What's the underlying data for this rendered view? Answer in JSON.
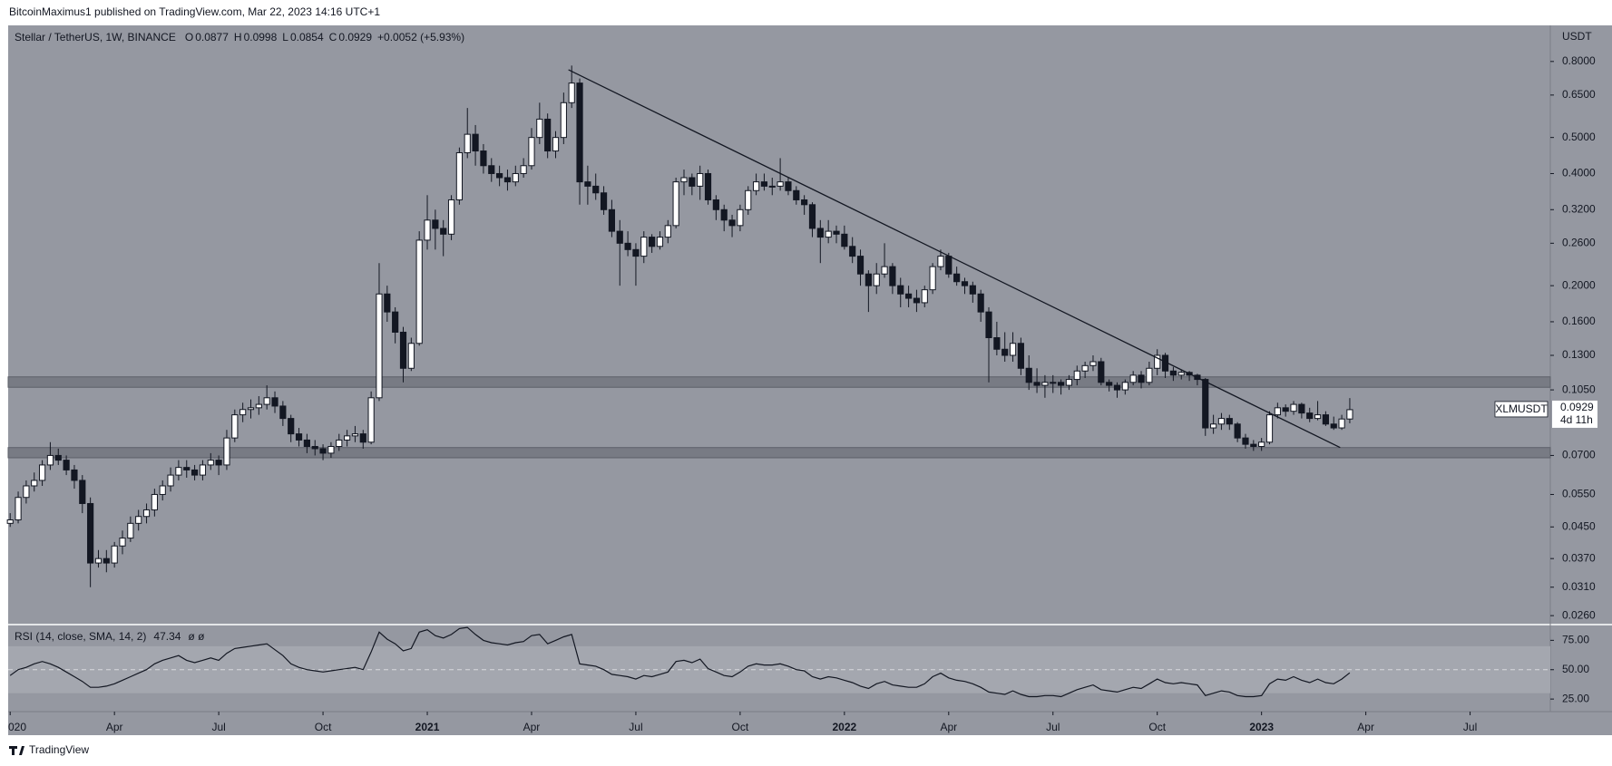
{
  "header": "BitcoinMaximus1 published on TradingView.com, Mar 22, 2023 14:16 UTC+1",
  "footer": "TradingView",
  "chart_data": {
    "type": "candlestick",
    "title": "Stellar / TetherUS, 1W, BINANCE",
    "ohlc_labels": [
      "O",
      "H",
      "L",
      "C"
    ],
    "change": "+0.0052 (+5.93%)",
    "symbol": "XLMUSDT",
    "countdown": "4d 11h",
    "y_unit": "USDT",
    "up_color": "#ffffff",
    "down_color": "#131722",
    "log": true,
    "ylim": [
      0.0246,
      1.0
    ],
    "yticks": [
      {
        "value": 0.8,
        "label": "0.8000"
      },
      {
        "value": 0.65,
        "label": "0.6500"
      },
      {
        "value": 0.5,
        "label": "0.5000"
      },
      {
        "value": 0.4,
        "label": "0.4000"
      },
      {
        "value": 0.32,
        "label": "0.3200"
      },
      {
        "value": 0.26,
        "label": "0.2600"
      },
      {
        "value": 0.2,
        "label": "0.2000"
      },
      {
        "value": 0.16,
        "label": "0.1600"
      },
      {
        "value": 0.13,
        "label": "0.1300"
      },
      {
        "value": 0.105,
        "label": "0.1050"
      },
      {
        "value": 0.07,
        "label": "0.0700"
      },
      {
        "value": 0.055,
        "label": "0.0550"
      },
      {
        "value": 0.045,
        "label": "0.0450"
      },
      {
        "value": 0.037,
        "label": "0.0370"
      },
      {
        "value": 0.031,
        "label": "0.0310"
      },
      {
        "value": 0.026,
        "label": "0.0260"
      }
    ],
    "xlim": [
      -0.25,
      192
    ],
    "xticks": [
      {
        "value": 0,
        "label": "020"
      },
      {
        "value": 13,
        "label": "Apr"
      },
      {
        "value": 26,
        "label": "Jul"
      },
      {
        "value": 39,
        "label": "Oct"
      },
      {
        "value": 52,
        "label": "2021"
      },
      {
        "value": 65,
        "label": "Apr"
      },
      {
        "value": 78,
        "label": "Jul"
      },
      {
        "value": 91,
        "label": "Oct"
      },
      {
        "value": 104,
        "label": "2022"
      },
      {
        "value": 117,
        "label": "Apr"
      },
      {
        "value": 130,
        "label": "Jul"
      },
      {
        "value": 143,
        "label": "Oct"
      },
      {
        "value": 156,
        "label": "2023"
      },
      {
        "value": 169,
        "label": "Apr"
      },
      {
        "value": 182,
        "label": "Jul"
      }
    ],
    "zones": [
      [
        0.1067,
        0.1138
      ],
      [
        0.069,
        0.0735
      ]
    ],
    "trendline": {
      "x": [
        69.6,
        165.8
      ],
      "y": [
        0.76,
        0.0735
      ]
    },
    "candles": [
      [
        0.046,
        0.049,
        0.045,
        0.047
      ],
      [
        0.047,
        0.056,
        0.046,
        0.054
      ],
      [
        0.054,
        0.06,
        0.052,
        0.058
      ],
      [
        0.058,
        0.063,
        0.056,
        0.06
      ],
      [
        0.06,
        0.068,
        0.058,
        0.066
      ],
      [
        0.066,
        0.076,
        0.064,
        0.07
      ],
      [
        0.07,
        0.073,
        0.066,
        0.068
      ],
      [
        0.068,
        0.07,
        0.062,
        0.064
      ],
      [
        0.064,
        0.066,
        0.057,
        0.06
      ],
      [
        0.06,
        0.062,
        0.049,
        0.052
      ],
      [
        0.052,
        0.054,
        0.031,
        0.036
      ],
      [
        0.036,
        0.039,
        0.035,
        0.037
      ],
      [
        0.037,
        0.039,
        0.034,
        0.036
      ],
      [
        0.036,
        0.041,
        0.035,
        0.04
      ],
      [
        0.04,
        0.044,
        0.038,
        0.042
      ],
      [
        0.042,
        0.048,
        0.041,
        0.046
      ],
      [
        0.046,
        0.05,
        0.044,
        0.048
      ],
      [
        0.048,
        0.052,
        0.046,
        0.05
      ],
      [
        0.05,
        0.057,
        0.048,
        0.055
      ],
      [
        0.055,
        0.06,
        0.053,
        0.058
      ],
      [
        0.058,
        0.065,
        0.056,
        0.062
      ],
      [
        0.062,
        0.068,
        0.06,
        0.065
      ],
      [
        0.065,
        0.068,
        0.061,
        0.064
      ],
      [
        0.064,
        0.066,
        0.06,
        0.062
      ],
      [
        0.062,
        0.068,
        0.06,
        0.066
      ],
      [
        0.066,
        0.071,
        0.064,
        0.068
      ],
      [
        0.068,
        0.07,
        0.062,
        0.066
      ],
      [
        0.066,
        0.082,
        0.064,
        0.078
      ],
      [
        0.078,
        0.093,
        0.076,
        0.09
      ],
      [
        0.09,
        0.097,
        0.086,
        0.093
      ],
      [
        0.093,
        0.099,
        0.088,
        0.094
      ],
      [
        0.094,
        0.101,
        0.09,
        0.096
      ],
      [
        0.096,
        0.108,
        0.093,
        0.1
      ],
      [
        0.1,
        0.104,
        0.091,
        0.095
      ],
      [
        0.095,
        0.098,
        0.084,
        0.088
      ],
      [
        0.088,
        0.09,
        0.076,
        0.08
      ],
      [
        0.08,
        0.083,
        0.074,
        0.077
      ],
      [
        0.077,
        0.08,
        0.071,
        0.074
      ],
      [
        0.074,
        0.077,
        0.07,
        0.073
      ],
      [
        0.073,
        0.075,
        0.068,
        0.071
      ],
      [
        0.071,
        0.076,
        0.069,
        0.074
      ],
      [
        0.074,
        0.08,
        0.072,
        0.077
      ],
      [
        0.077,
        0.082,
        0.074,
        0.079
      ],
      [
        0.079,
        0.084,
        0.076,
        0.08
      ],
      [
        0.08,
        0.082,
        0.073,
        0.076
      ],
      [
        0.076,
        0.104,
        0.075,
        0.1
      ],
      [
        0.1,
        0.23,
        0.098,
        0.19
      ],
      [
        0.19,
        0.2,
        0.16,
        0.17
      ],
      [
        0.17,
        0.175,
        0.14,
        0.15
      ],
      [
        0.15,
        0.155,
        0.11,
        0.12
      ],
      [
        0.12,
        0.145,
        0.118,
        0.14
      ],
      [
        0.14,
        0.28,
        0.138,
        0.265
      ],
      [
        0.265,
        0.35,
        0.25,
        0.3
      ],
      [
        0.3,
        0.32,
        0.25,
        0.285
      ],
      [
        0.285,
        0.3,
        0.24,
        0.275
      ],
      [
        0.275,
        0.35,
        0.265,
        0.34
      ],
      [
        0.34,
        0.47,
        0.33,
        0.455
      ],
      [
        0.455,
        0.6,
        0.44,
        0.51
      ],
      [
        0.51,
        0.54,
        0.42,
        0.46
      ],
      [
        0.46,
        0.48,
        0.4,
        0.42
      ],
      [
        0.42,
        0.44,
        0.38,
        0.4
      ],
      [
        0.4,
        0.42,
        0.37,
        0.39
      ],
      [
        0.39,
        0.41,
        0.36,
        0.38
      ],
      [
        0.38,
        0.42,
        0.37,
        0.4
      ],
      [
        0.4,
        0.44,
        0.39,
        0.42
      ],
      [
        0.42,
        0.53,
        0.41,
        0.5
      ],
      [
        0.5,
        0.62,
        0.48,
        0.56
      ],
      [
        0.56,
        0.58,
        0.44,
        0.46
      ],
      [
        0.46,
        0.52,
        0.44,
        0.5
      ],
      [
        0.5,
        0.66,
        0.48,
        0.62
      ],
      [
        0.62,
        0.78,
        0.6,
        0.7
      ],
      [
        0.7,
        0.72,
        0.33,
        0.38
      ],
      [
        0.38,
        0.42,
        0.33,
        0.37
      ],
      [
        0.37,
        0.4,
        0.34,
        0.355
      ],
      [
        0.355,
        0.37,
        0.31,
        0.32
      ],
      [
        0.32,
        0.34,
        0.27,
        0.28
      ],
      [
        0.28,
        0.3,
        0.2,
        0.26
      ],
      [
        0.26,
        0.28,
        0.24,
        0.25
      ],
      [
        0.25,
        0.26,
        0.2,
        0.24
      ],
      [
        0.24,
        0.28,
        0.23,
        0.27
      ],
      [
        0.27,
        0.275,
        0.245,
        0.255
      ],
      [
        0.255,
        0.28,
        0.25,
        0.27
      ],
      [
        0.27,
        0.3,
        0.26,
        0.29
      ],
      [
        0.29,
        0.39,
        0.285,
        0.38
      ],
      [
        0.38,
        0.41,
        0.35,
        0.39
      ],
      [
        0.39,
        0.4,
        0.35,
        0.37
      ],
      [
        0.37,
        0.42,
        0.34,
        0.4
      ],
      [
        0.4,
        0.41,
        0.33,
        0.34
      ],
      [
        0.34,
        0.35,
        0.3,
        0.32
      ],
      [
        0.32,
        0.33,
        0.28,
        0.3
      ],
      [
        0.3,
        0.31,
        0.27,
        0.29
      ],
      [
        0.29,
        0.33,
        0.28,
        0.32
      ],
      [
        0.32,
        0.37,
        0.31,
        0.36
      ],
      [
        0.36,
        0.4,
        0.35,
        0.38
      ],
      [
        0.38,
        0.4,
        0.36,
        0.37
      ],
      [
        0.37,
        0.39,
        0.35,
        0.37
      ],
      [
        0.37,
        0.44,
        0.36,
        0.38
      ],
      [
        0.38,
        0.39,
        0.35,
        0.36
      ],
      [
        0.36,
        0.37,
        0.33,
        0.34
      ],
      [
        0.34,
        0.35,
        0.31,
        0.33
      ],
      [
        0.33,
        0.335,
        0.27,
        0.285
      ],
      [
        0.285,
        0.3,
        0.23,
        0.27
      ],
      [
        0.27,
        0.3,
        0.26,
        0.28
      ],
      [
        0.28,
        0.29,
        0.26,
        0.275
      ],
      [
        0.275,
        0.29,
        0.25,
        0.255
      ],
      [
        0.255,
        0.27,
        0.23,
        0.24
      ],
      [
        0.24,
        0.25,
        0.2,
        0.215
      ],
      [
        0.215,
        0.22,
        0.17,
        0.2
      ],
      [
        0.2,
        0.23,
        0.19,
        0.215
      ],
      [
        0.215,
        0.26,
        0.21,
        0.225
      ],
      [
        0.225,
        0.23,
        0.19,
        0.2
      ],
      [
        0.2,
        0.21,
        0.175,
        0.19
      ],
      [
        0.19,
        0.2,
        0.175,
        0.185
      ],
      [
        0.185,
        0.195,
        0.17,
        0.18
      ],
      [
        0.18,
        0.2,
        0.175,
        0.195
      ],
      [
        0.195,
        0.23,
        0.19,
        0.225
      ],
      [
        0.225,
        0.25,
        0.22,
        0.24
      ],
      [
        0.24,
        0.245,
        0.21,
        0.215
      ],
      [
        0.215,
        0.225,
        0.2,
        0.205
      ],
      [
        0.205,
        0.21,
        0.19,
        0.2
      ],
      [
        0.2,
        0.205,
        0.18,
        0.19
      ],
      [
        0.19,
        0.195,
        0.16,
        0.17
      ],
      [
        0.17,
        0.175,
        0.11,
        0.145
      ],
      [
        0.145,
        0.16,
        0.13,
        0.135
      ],
      [
        0.135,
        0.15,
        0.125,
        0.13
      ],
      [
        0.13,
        0.15,
        0.125,
        0.14
      ],
      [
        0.14,
        0.145,
        0.115,
        0.12
      ],
      [
        0.12,
        0.13,
        0.105,
        0.11
      ],
      [
        0.11,
        0.12,
        0.103,
        0.108
      ],
      [
        0.108,
        0.115,
        0.1,
        0.11
      ],
      [
        0.11,
        0.115,
        0.103,
        0.11
      ],
      [
        0.11,
        0.112,
        0.102,
        0.108
      ],
      [
        0.108,
        0.115,
        0.105,
        0.112
      ],
      [
        0.112,
        0.122,
        0.108,
        0.118
      ],
      [
        0.118,
        0.125,
        0.113,
        0.122
      ],
      [
        0.122,
        0.13,
        0.118,
        0.125
      ],
      [
        0.125,
        0.128,
        0.108,
        0.11
      ],
      [
        0.11,
        0.112,
        0.104,
        0.108
      ],
      [
        0.108,
        0.11,
        0.1,
        0.105
      ],
      [
        0.105,
        0.112,
        0.102,
        0.11
      ],
      [
        0.11,
        0.118,
        0.108,
        0.115
      ],
      [
        0.115,
        0.118,
        0.106,
        0.11
      ],
      [
        0.11,
        0.125,
        0.108,
        0.12
      ],
      [
        0.12,
        0.135,
        0.115,
        0.13
      ],
      [
        0.13,
        0.132,
        0.113,
        0.118
      ],
      [
        0.118,
        0.121,
        0.111,
        0.115
      ],
      [
        0.115,
        0.119,
        0.112,
        0.117
      ],
      [
        0.117,
        0.118,
        0.111,
        0.115
      ],
      [
        0.115,
        0.116,
        0.108,
        0.112
      ],
      [
        0.112,
        0.113,
        0.079,
        0.083
      ],
      [
        0.083,
        0.09,
        0.08,
        0.085
      ],
      [
        0.085,
        0.091,
        0.082,
        0.088
      ],
      [
        0.088,
        0.09,
        0.082,
        0.085
      ],
      [
        0.085,
        0.086,
        0.076,
        0.078
      ],
      [
        0.078,
        0.08,
        0.073,
        0.075
      ],
      [
        0.075,
        0.077,
        0.072,
        0.074
      ],
      [
        0.074,
        0.078,
        0.072,
        0.076
      ],
      [
        0.076,
        0.092,
        0.075,
        0.09
      ],
      [
        0.09,
        0.097,
        0.088,
        0.094
      ],
      [
        0.094,
        0.096,
        0.089,
        0.092
      ],
      [
        0.092,
        0.098,
        0.09,
        0.096
      ],
      [
        0.096,
        0.097,
        0.088,
        0.091
      ],
      [
        0.091,
        0.094,
        0.086,
        0.088
      ],
      [
        0.088,
        0.098,
        0.087,
        0.09
      ],
      [
        0.09,
        0.092,
        0.084,
        0.085
      ],
      [
        0.085,
        0.089,
        0.082,
        0.083
      ],
      [
        0.083,
        0.09,
        0.082,
        0.0877
      ],
      [
        0.0877,
        0.0998,
        0.0854,
        0.0929
      ]
    ],
    "rsi": {
      "title": "RSI (14, close, SMA, 14, 2)",
      "extra": "ø ø",
      "ylim": [
        14.3,
        88.4
      ],
      "yticks": [
        {
          "value": 75,
          "label": "75.00"
        },
        {
          "value": 50,
          "label": "50.00"
        },
        {
          "value": 25,
          "label": "25.00"
        }
      ],
      "band": [
        30,
        70
      ],
      "mid": 50,
      "values": [
        45,
        50,
        52,
        55,
        57,
        55,
        52,
        48,
        44,
        40,
        35,
        35,
        36,
        38,
        41,
        44,
        47,
        50,
        55,
        58,
        60,
        62,
        58,
        56,
        58,
        60,
        58,
        64,
        68,
        69,
        70,
        71,
        72,
        67,
        62,
        55,
        52,
        50,
        49,
        48,
        49,
        50,
        51,
        52,
        50,
        65,
        82,
        76,
        72,
        66,
        68,
        82,
        84,
        79,
        77,
        80,
        85,
        86,
        80,
        75,
        73,
        72,
        71,
        73,
        74,
        79,
        80,
        72,
        75,
        78,
        80,
        55,
        54,
        53,
        50,
        46,
        45,
        44,
        42,
        45,
        44,
        46,
        48,
        57,
        58,
        56,
        59,
        51,
        48,
        45,
        44,
        48,
        53,
        55,
        54,
        54,
        55,
        53,
        50,
        49,
        44,
        42,
        44,
        43,
        41,
        39,
        36,
        34,
        38,
        40,
        37,
        36,
        35,
        35,
        38,
        44,
        47,
        43,
        41,
        40,
        38,
        35,
        31,
        30,
        29,
        32,
        29,
        27,
        27,
        28,
        28,
        27,
        30,
        33,
        35,
        37,
        33,
        32,
        31,
        33,
        35,
        34,
        38,
        42,
        39,
        38,
        39,
        38,
        37,
        28,
        30,
        32,
        31,
        28,
        27,
        27,
        28,
        38,
        42,
        41,
        44,
        41,
        39,
        42,
        39,
        38,
        42,
        47.34
      ]
    }
  }
}
